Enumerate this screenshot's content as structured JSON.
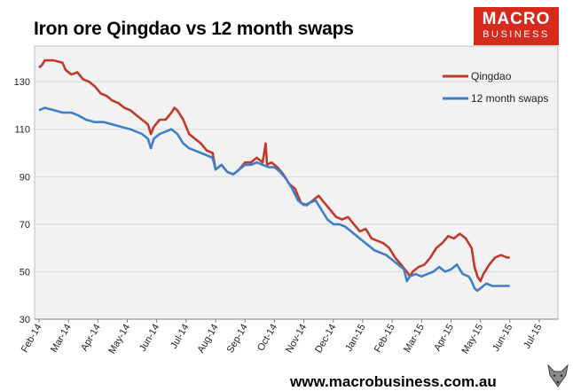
{
  "title": "Iron ore Qingdao vs 12 month swaps",
  "logo": {
    "line1": "MACRO",
    "line2": "BUSINESS"
  },
  "footer": {
    "url": "www.macrobusiness.com.au"
  },
  "colors": {
    "qingdao": "#c0392b",
    "swaps": "#3f7fc8",
    "plot_bg": "#f2f2f2",
    "grid": "#d9d9d9",
    "logo_bg": "#d52b1e"
  },
  "chart_data": {
    "type": "line",
    "title": "Iron ore Qingdao vs 12 month swaps",
    "xlabel": "",
    "ylabel": "",
    "ylim": [
      30,
      145
    ],
    "yticks": [
      30,
      50,
      70,
      90,
      110,
      130
    ],
    "x_tick_labels": [
      "Feb-14",
      "Mar-14",
      "Apr-14",
      "May-14",
      "Jun-14",
      "Jul-14",
      "Aug-14",
      "Sep-14",
      "Oct-14",
      "Nov-14",
      "Dec-14",
      "Jan-15",
      "Feb-15",
      "Mar-15",
      "Apr-15",
      "May-15",
      "Jun-15",
      "Jul-15"
    ],
    "grid": "horizontal",
    "legend": "top-right",
    "series": [
      {
        "name": "Qingdao",
        "color": "#c0392b",
        "points": [
          [
            0,
            136
          ],
          [
            0.1,
            137
          ],
          [
            0.2,
            139
          ],
          [
            0.5,
            139
          ],
          [
            0.8,
            138
          ],
          [
            0.9,
            135
          ],
          [
            1.1,
            133
          ],
          [
            1.3,
            134
          ],
          [
            1.5,
            131
          ],
          [
            1.7,
            130
          ],
          [
            1.9,
            128
          ],
          [
            2.1,
            125
          ],
          [
            2.3,
            124
          ],
          [
            2.5,
            122
          ],
          [
            2.7,
            121
          ],
          [
            2.9,
            119
          ],
          [
            3.1,
            118
          ],
          [
            3.3,
            116
          ],
          [
            3.5,
            114
          ],
          [
            3.7,
            112
          ],
          [
            3.8,
            108
          ],
          [
            3.9,
            111
          ],
          [
            4.1,
            114
          ],
          [
            4.3,
            114
          ],
          [
            4.5,
            117
          ],
          [
            4.6,
            119
          ],
          [
            4.7,
            118
          ],
          [
            4.9,
            114
          ],
          [
            5.1,
            108
          ],
          [
            5.3,
            106
          ],
          [
            5.5,
            104
          ],
          [
            5.7,
            101
          ],
          [
            5.9,
            100
          ],
          [
            6.0,
            93
          ],
          [
            6.2,
            95
          ],
          [
            6.4,
            92
          ],
          [
            6.6,
            91
          ],
          [
            6.8,
            93
          ],
          [
            7.0,
            96
          ],
          [
            7.2,
            96
          ],
          [
            7.4,
            98
          ],
          [
            7.6,
            96
          ],
          [
            7.7,
            104
          ],
          [
            7.75,
            95
          ],
          [
            7.9,
            96
          ],
          [
            8.1,
            94
          ],
          [
            8.3,
            91
          ],
          [
            8.5,
            87
          ],
          [
            8.7,
            85
          ],
          [
            8.9,
            79
          ],
          [
            9.1,
            78
          ],
          [
            9.3,
            80
          ],
          [
            9.5,
            82
          ],
          [
            9.7,
            79
          ],
          [
            9.9,
            76
          ],
          [
            10.1,
            73
          ],
          [
            10.3,
            72
          ],
          [
            10.5,
            73
          ],
          [
            10.7,
            70
          ],
          [
            10.9,
            67
          ],
          [
            11.1,
            68
          ],
          [
            11.3,
            64
          ],
          [
            11.5,
            63
          ],
          [
            11.7,
            62
          ],
          [
            11.9,
            60
          ],
          [
            12.1,
            56
          ],
          [
            12.3,
            53
          ],
          [
            12.5,
            50
          ],
          [
            12.6,
            48
          ],
          [
            12.7,
            50
          ],
          [
            12.9,
            52
          ],
          [
            13.1,
            53
          ],
          [
            13.3,
            56
          ],
          [
            13.5,
            60
          ],
          [
            13.7,
            62
          ],
          [
            13.9,
            65
          ],
          [
            14.1,
            64
          ],
          [
            14.3,
            66
          ],
          [
            14.5,
            64
          ],
          [
            14.7,
            60
          ],
          [
            14.8,
            52
          ],
          [
            14.9,
            48
          ],
          [
            15.0,
            46
          ],
          [
            15.1,
            49
          ],
          [
            15.3,
            53
          ],
          [
            15.5,
            56
          ],
          [
            15.7,
            57
          ],
          [
            15.9,
            56
          ],
          [
            16.0,
            56
          ]
        ]
      },
      {
        "name": "12 month swaps",
        "color": "#3f7fc8",
        "points": [
          [
            0,
            118
          ],
          [
            0.2,
            119
          ],
          [
            0.5,
            118
          ],
          [
            0.8,
            117
          ],
          [
            1.1,
            117
          ],
          [
            1.3,
            116
          ],
          [
            1.6,
            114
          ],
          [
            1.9,
            113
          ],
          [
            2.2,
            113
          ],
          [
            2.5,
            112
          ],
          [
            2.8,
            111
          ],
          [
            3.1,
            110
          ],
          [
            3.3,
            109
          ],
          [
            3.5,
            108
          ],
          [
            3.7,
            106
          ],
          [
            3.8,
            102
          ],
          [
            3.9,
            106
          ],
          [
            4.1,
            108
          ],
          [
            4.3,
            109
          ],
          [
            4.5,
            110
          ],
          [
            4.7,
            108
          ],
          [
            4.9,
            104
          ],
          [
            5.1,
            102
          ],
          [
            5.3,
            101
          ],
          [
            5.5,
            100
          ],
          [
            5.7,
            99
          ],
          [
            5.9,
            98
          ],
          [
            6.0,
            93
          ],
          [
            6.2,
            95
          ],
          [
            6.4,
            92
          ],
          [
            6.6,
            91
          ],
          [
            6.8,
            93
          ],
          [
            7.0,
            95
          ],
          [
            7.2,
            95
          ],
          [
            7.4,
            96
          ],
          [
            7.6,
            95
          ],
          [
            7.8,
            94
          ],
          [
            8.0,
            94
          ],
          [
            8.2,
            92
          ],
          [
            8.4,
            89
          ],
          [
            8.6,
            85
          ],
          [
            8.8,
            80
          ],
          [
            9.0,
            78
          ],
          [
            9.2,
            79
          ],
          [
            9.4,
            80
          ],
          [
            9.6,
            76
          ],
          [
            9.8,
            72
          ],
          [
            10.0,
            70
          ],
          [
            10.2,
            70
          ],
          [
            10.4,
            69
          ],
          [
            10.6,
            67
          ],
          [
            10.8,
            65
          ],
          [
            11.0,
            63
          ],
          [
            11.2,
            61
          ],
          [
            11.4,
            59
          ],
          [
            11.6,
            58
          ],
          [
            11.8,
            57
          ],
          [
            12.0,
            55
          ],
          [
            12.2,
            53
          ],
          [
            12.4,
            51
          ],
          [
            12.5,
            46
          ],
          [
            12.6,
            48
          ],
          [
            12.8,
            49
          ],
          [
            13.0,
            48
          ],
          [
            13.2,
            49
          ],
          [
            13.4,
            50
          ],
          [
            13.6,
            52
          ],
          [
            13.8,
            50
          ],
          [
            14.0,
            51
          ],
          [
            14.2,
            53
          ],
          [
            14.4,
            49
          ],
          [
            14.6,
            48
          ],
          [
            14.7,
            46
          ],
          [
            14.8,
            43
          ],
          [
            14.9,
            42
          ],
          [
            15.0,
            43
          ],
          [
            15.2,
            45
          ],
          [
            15.4,
            44
          ],
          [
            15.6,
            44
          ],
          [
            15.8,
            44
          ],
          [
            16.0,
            44
          ]
        ]
      }
    ]
  }
}
